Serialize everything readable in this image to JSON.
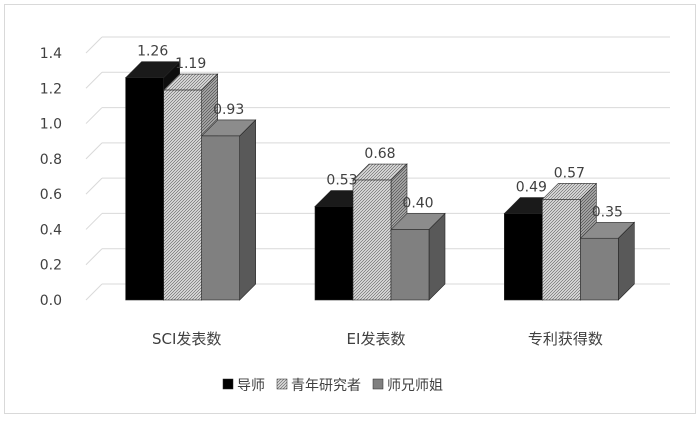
{
  "chart_data": {
    "type": "bar",
    "style": "3d-clustered-column",
    "categories": [
      "SCI发表数",
      "EI发表数",
      "专利获得数"
    ],
    "series": [
      {
        "name": "导师",
        "values": [
          1.26,
          0.53,
          0.49
        ],
        "color": "#000000",
        "pattern": "solid"
      },
      {
        "name": "青年研究者",
        "values": [
          1.19,
          0.68,
          0.57
        ],
        "color": "#bfbfbf",
        "pattern": "diagonal-hatch"
      },
      {
        "name": "师兄师姐",
        "values": [
          0.93,
          0.4,
          0.35
        ],
        "color": "#808080",
        "pattern": "solid"
      }
    ],
    "data_labels": [
      [
        "1.26",
        "0.53",
        "0.49"
      ],
      [
        "1.19",
        "0.68",
        "0.57"
      ],
      [
        "0.93",
        "0.40",
        "0.35"
      ]
    ],
    "ylim": [
      0,
      1.4
    ],
    "yticks": [
      "0.0",
      "0.2",
      "0.4",
      "0.6",
      "0.8",
      "1.0",
      "1.2",
      "1.4"
    ],
    "grid": true,
    "legend_position": "bottom"
  }
}
